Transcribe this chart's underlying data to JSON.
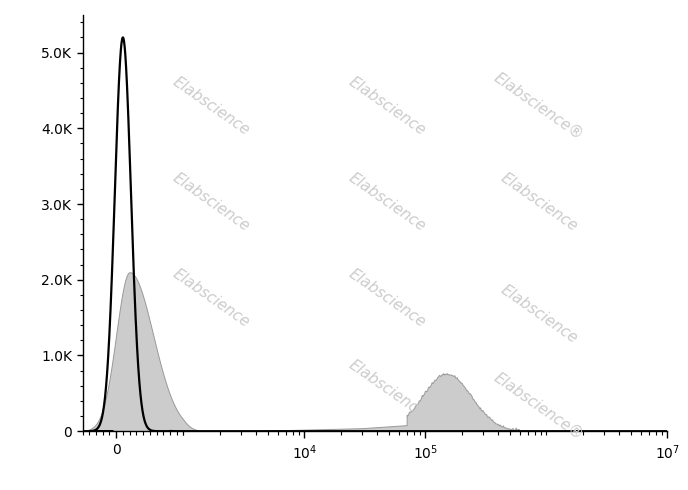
{
  "background_color": "#ffffff",
  "watermark_text": "Elabscience",
  "watermark_color": "#cccccc",
  "ylim": [
    0,
    5500
  ],
  "yticks": [
    0,
    1000,
    2000,
    3000,
    4000,
    5000
  ],
  "ytick_labels": [
    "0",
    "1.0K",
    "2.0K",
    "3.0K",
    "4.0K",
    "5.0K"
  ],
  "xtick_positions": [
    0,
    10000,
    100000,
    10000000
  ],
  "xtick_labels": [
    "0",
    "10$^{4}$",
    "10$^{5}$",
    "10$^{7}$"
  ],
  "isotype_color": "#000000",
  "isotype_linewidth": 1.6,
  "antibody_facecolor": "#cccccc",
  "antibody_edgecolor": "#999999",
  "antibody_linewidth": 0.7,
  "linthresh": 1000,
  "linscale": 0.5
}
